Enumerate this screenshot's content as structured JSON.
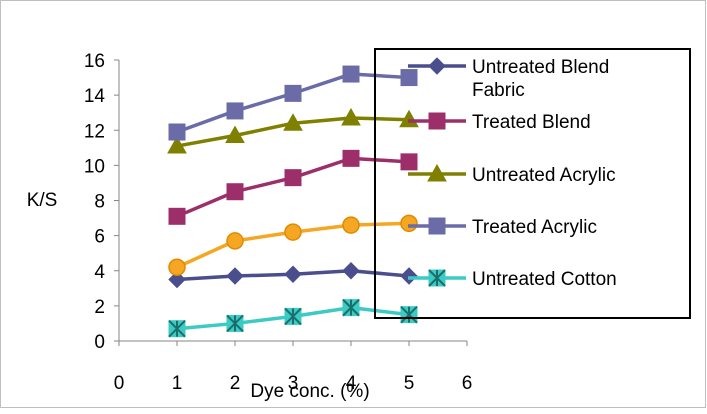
{
  "chart_data": {
    "type": "line",
    "title": "",
    "xlabel": "Dye conc. (%)",
    "ylabel": "K/S",
    "xlim": [
      0,
      6
    ],
    "ylim": [
      0,
      16
    ],
    "x_ticks": [
      0,
      1,
      2,
      3,
      4,
      5,
      6
    ],
    "y_ticks": [
      0,
      2,
      4,
      6,
      8,
      10,
      12,
      14,
      16
    ],
    "grid": false,
    "legend_position": "right",
    "x": [
      1,
      2,
      3,
      4,
      5
    ],
    "series": [
      {
        "legend_label": "Untreated Blend Fabric",
        "color": "#4A4E8C",
        "marker": "diamond",
        "values": [
          3.5,
          3.7,
          3.8,
          4.0,
          3.7
        ]
      },
      {
        "legend_label": "Treated Blend",
        "color": "#9C2E6A",
        "marker": "square",
        "values": [
          7.1,
          8.5,
          9.3,
          10.4,
          10.2
        ]
      },
      {
        "legend_label": "Untreated Acrylic",
        "color": "#808000",
        "marker": "triangle",
        "values": [
          11.1,
          11.7,
          12.4,
          12.7,
          12.6
        ]
      },
      {
        "legend_label": "Treated Acrylic",
        "color": "#6B6BA8",
        "marker": "square",
        "values": [
          11.9,
          13.1,
          14.1,
          15.2,
          15.0
        ]
      },
      {
        "legend_label": "",
        "color": "#F5A623",
        "marker": "circle",
        "values": [
          4.2,
          5.7,
          6.2,
          6.6,
          6.7
        ]
      },
      {
        "legend_label": "Untreated Cotton",
        "color": "#3CCAC4",
        "marker": "asterisk",
        "values": [
          0.7,
          1.0,
          1.4,
          1.9,
          1.5
        ]
      }
    ]
  }
}
